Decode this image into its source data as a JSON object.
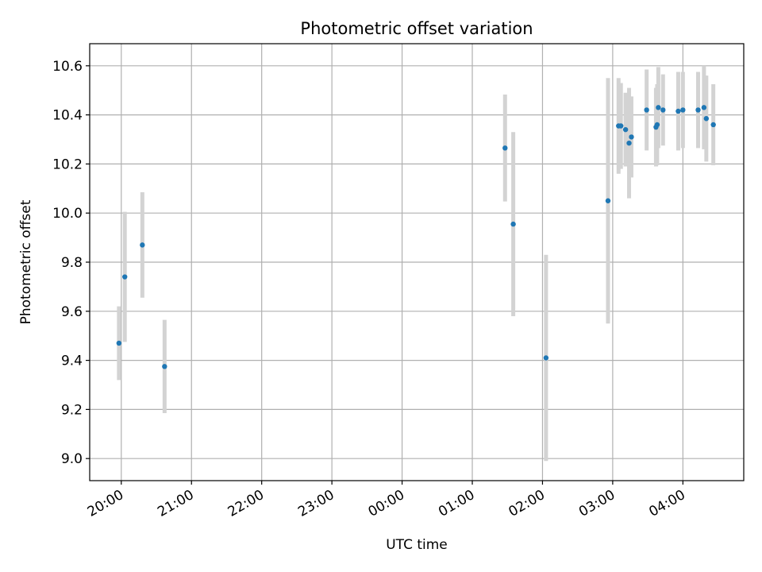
{
  "chart_data": {
    "type": "scatter",
    "title": "Photometric offset variation",
    "xlabel": "UTC time",
    "ylabel": "Photometric offset",
    "x_ticks": [
      "20:00",
      "21:00",
      "22:00",
      "23:00",
      "00:00",
      "01:00",
      "02:00",
      "03:00",
      "04:00"
    ],
    "y_ticks": [
      "9.0",
      "9.2",
      "9.4",
      "9.6",
      "9.8",
      "10.0",
      "10.2",
      "10.4",
      "10.6"
    ],
    "xlim": [
      "19:33",
      "04:52"
    ],
    "ylim": [
      8.91,
      10.69
    ],
    "grid": true,
    "marker_color": "#1f77b4",
    "errorbar_color": "#d3d3d3",
    "points": [
      {
        "x": "19:58",
        "y": 9.47,
        "yerr": 0.15
      },
      {
        "x": "20:03",
        "y": 9.74,
        "yerr": 0.265
      },
      {
        "x": "20:18",
        "y": 9.87,
        "yerr": 0.215
      },
      {
        "x": "20:37",
        "y": 9.375,
        "yerr": 0.19
      },
      {
        "x": "01:28",
        "y": 10.265,
        "yerr": 0.218
      },
      {
        "x": "01:35",
        "y": 9.955,
        "yerr": 0.375
      },
      {
        "x": "02:03",
        "y": 9.41,
        "yerr": 0.42
      },
      {
        "x": "02:56",
        "y": 10.05,
        "yerr": 0.5
      },
      {
        "x": "03:05",
        "y": 10.355,
        "yerr": 0.195
      },
      {
        "x": "03:07",
        "y": 10.355,
        "yerr": 0.175
      },
      {
        "x": "03:11",
        "y": 10.34,
        "yerr": 0.15
      },
      {
        "x": "03:14",
        "y": 10.285,
        "yerr": 0.225
      },
      {
        "x": "03:16",
        "y": 10.31,
        "yerr": 0.165
      },
      {
        "x": "03:29",
        "y": 10.42,
        "yerr": 0.165
      },
      {
        "x": "03:37",
        "y": 10.35,
        "yerr": 0.16
      },
      {
        "x": "03:38",
        "y": 10.36,
        "yerr": 0.165
      },
      {
        "x": "03:39",
        "y": 10.43,
        "yerr": 0.165
      },
      {
        "x": "03:43",
        "y": 10.42,
        "yerr": 0.145
      },
      {
        "x": "03:56",
        "y": 10.415,
        "yerr": 0.16
      },
      {
        "x": "04:00",
        "y": 10.42,
        "yerr": 0.155
      },
      {
        "x": "04:13",
        "y": 10.42,
        "yerr": 0.155
      },
      {
        "x": "04:18",
        "y": 10.43,
        "yerr": 0.17
      },
      {
        "x": "04:20",
        "y": 10.385,
        "yerr": 0.175
      },
      {
        "x": "04:26",
        "y": 10.36,
        "yerr": 0.165
      }
    ]
  }
}
